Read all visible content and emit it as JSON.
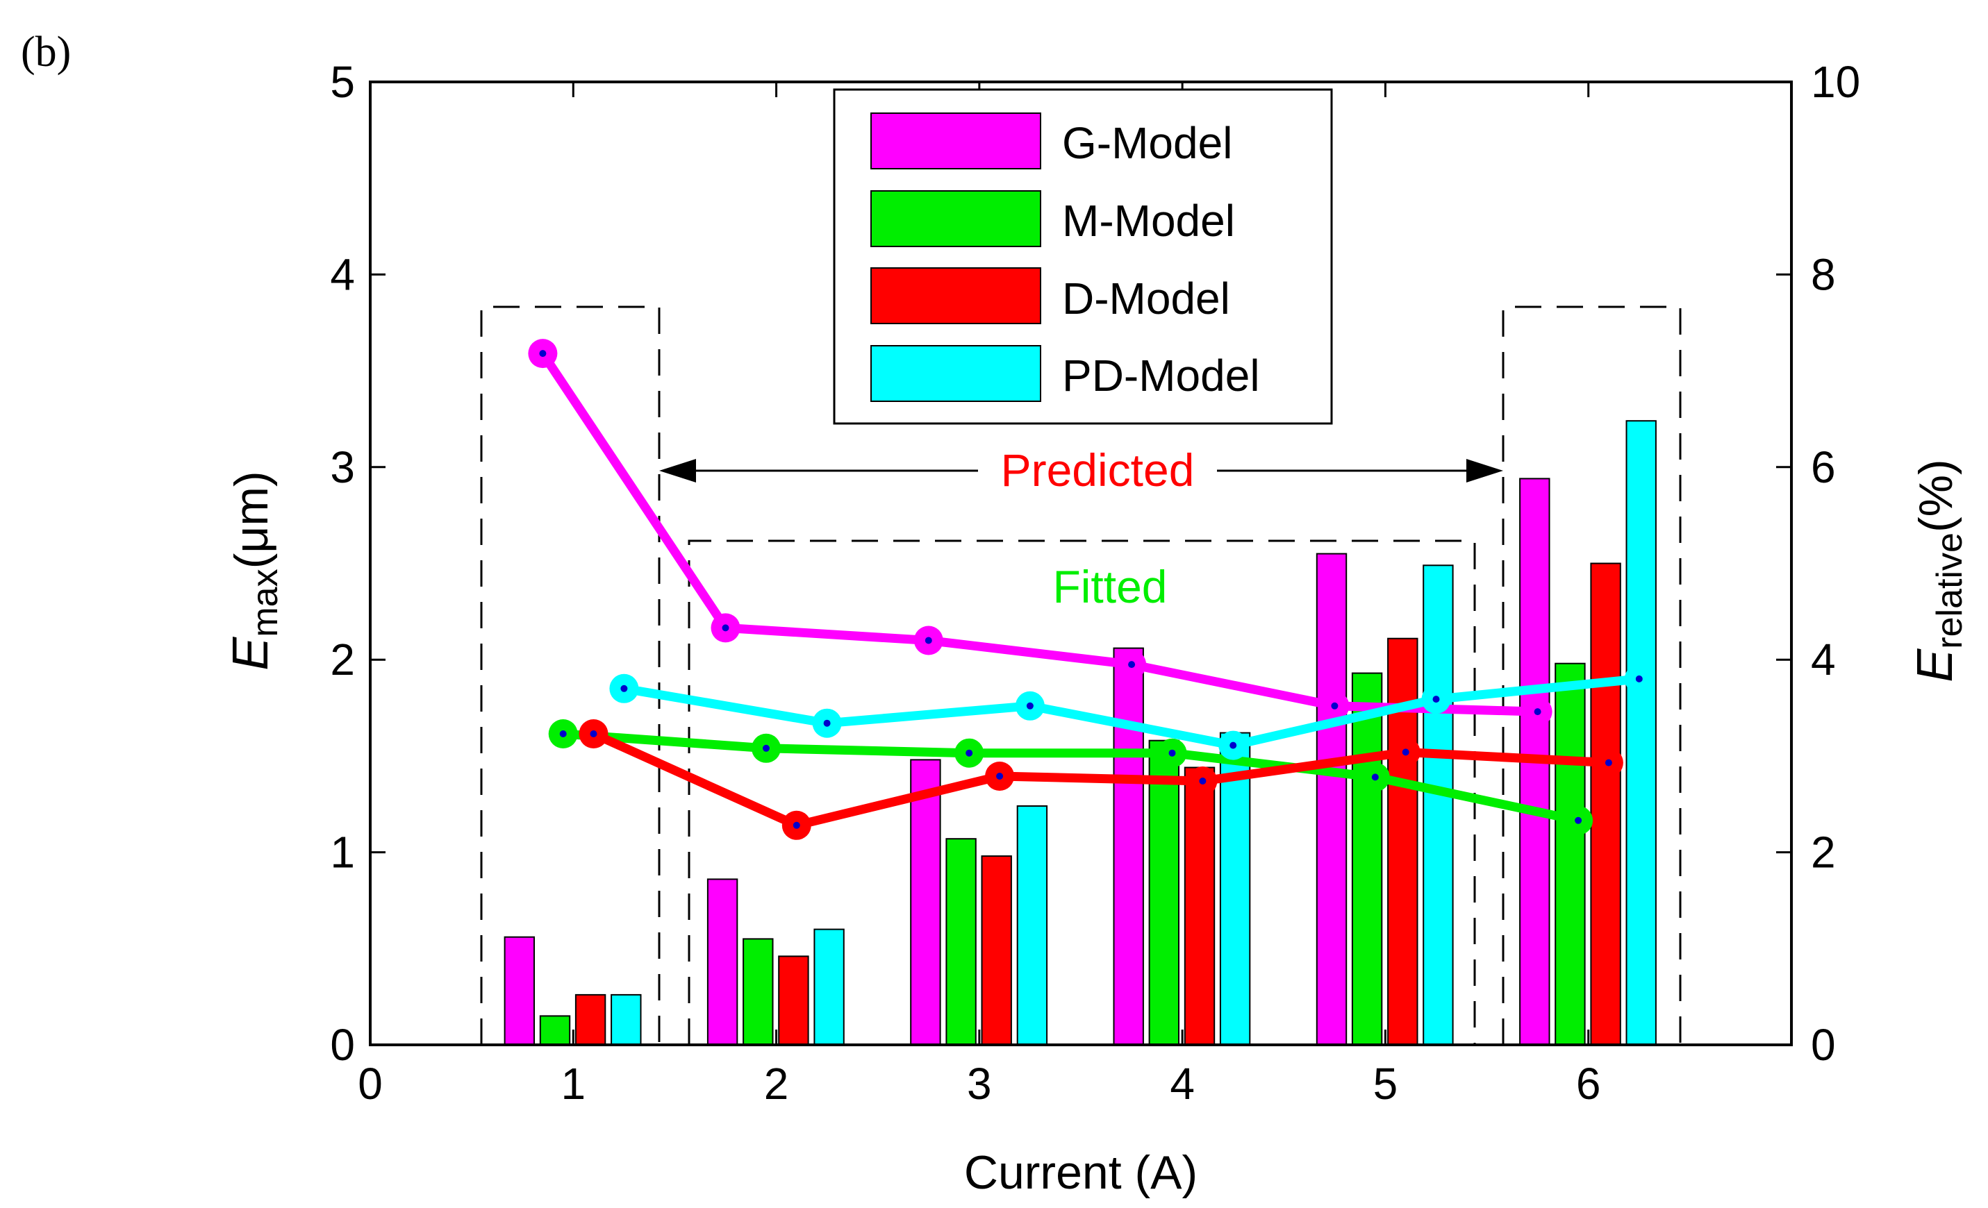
{
  "panel_label": "(b)",
  "colors": {
    "G-Model": "#ff00ff",
    "M-Model": "#00ee00",
    "D-Model": "#ff0000",
    "PD-Model": "#00ffff",
    "predicted_text": "#ff0000",
    "fitted_text": "#00ee00",
    "marker_dot": "#0000cc"
  },
  "chart_data": {
    "type": "bar",
    "x_ticks": [
      "0",
      "1",
      "2",
      "3",
      "4",
      "5",
      "6"
    ],
    "xlim": [
      0,
      7
    ],
    "xlabel": "Current (A)",
    "ylabel_left_main": "E",
    "ylabel_left_sub": "max",
    "ylabel_left_unit": "(μm)",
    "ylim_left": [
      0,
      5
    ],
    "y_ticks_left": [
      "0",
      "1",
      "2",
      "3",
      "4",
      "5"
    ],
    "ylabel_right_main": "E",
    "ylabel_right_sub": "relative",
    "ylabel_right_unit": "(%)",
    "ylim_right": [
      0,
      10
    ],
    "y_ticks_right": [
      "0",
      "2",
      "4",
      "6",
      "8",
      "10"
    ],
    "categories": [
      1,
      2,
      3,
      4,
      5,
      6
    ],
    "bar_series": [
      {
        "name": "G-Model",
        "values": [
          0.56,
          0.86,
          1.48,
          2.06,
          2.55,
          2.94
        ]
      },
      {
        "name": "M-Model",
        "values": [
          0.15,
          0.55,
          1.07,
          1.58,
          1.93,
          1.98
        ]
      },
      {
        "name": "D-Model",
        "values": [
          0.26,
          0.46,
          0.98,
          1.44,
          2.11,
          2.5
        ]
      },
      {
        "name": "PD-Model",
        "values": [
          0.26,
          0.6,
          1.24,
          1.62,
          2.49,
          3.24
        ]
      }
    ],
    "line_series_axis": "right",
    "line_series": [
      {
        "name": "G-Model",
        "x": [
          0.85,
          1.75,
          2.75,
          3.75,
          4.75,
          5.75
        ],
        "y": [
          7.18,
          4.33,
          4.2,
          3.95,
          3.52,
          3.46
        ]
      },
      {
        "name": "M-Model",
        "x": [
          0.95,
          1.95,
          2.95,
          3.95,
          4.95,
          5.95
        ],
        "y": [
          3.23,
          3.08,
          3.03,
          3.03,
          2.78,
          2.33
        ]
      },
      {
        "name": "D-Model",
        "x": [
          1.1,
          2.1,
          3.1,
          4.1,
          5.1,
          6.1
        ],
        "y": [
          3.23,
          2.28,
          2.79,
          2.74,
          3.04,
          2.93
        ]
      },
      {
        "name": "PD-Model",
        "x": [
          1.25,
          2.25,
          3.25,
          4.25,
          5.25,
          6.25
        ],
        "y": [
          3.7,
          3.34,
          3.52,
          3.11,
          3.59,
          3.8
        ]
      }
    ],
    "legend": [
      "G-Model",
      "M-Model",
      "D-Model",
      "PD-Model"
    ],
    "legend_position": "top-center",
    "annotations": {
      "predicted": "Predicted",
      "fitted": "Fitted"
    }
  }
}
